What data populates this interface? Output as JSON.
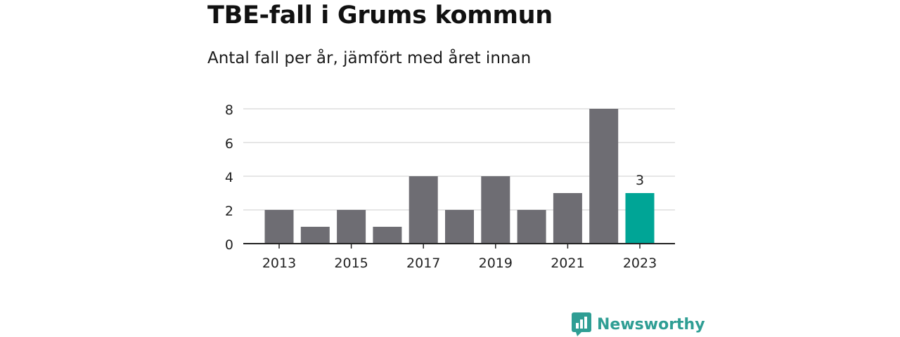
{
  "header": {
    "title": "TBE-fall i Grums kommun",
    "subtitle": "Antal fall per år, jämfört med året innan"
  },
  "brand": {
    "name": "Newsworthy"
  },
  "colors": {
    "bar": "#6e6d73",
    "highlight": "#00a596",
    "grid": "#dddddd",
    "axis": "#222222",
    "brand": "#2f9e94"
  },
  "chart_data": {
    "type": "bar",
    "title": "TBE-fall i Grums kommun",
    "subtitle": "Antal fall per år, jämfört med året innan",
    "categories": [
      "2013",
      "2014",
      "2015",
      "2016",
      "2017",
      "2018",
      "2019",
      "2020",
      "2021",
      "2022",
      "2023"
    ],
    "values": [
      2,
      1,
      2,
      1,
      4,
      2,
      4,
      2,
      3,
      8,
      3
    ],
    "highlight_index": 10,
    "data_labels": [
      {
        "index": 10,
        "text": "3"
      }
    ],
    "x_tick_labels": [
      "2013",
      "2015",
      "2017",
      "2019",
      "2021",
      "2023"
    ],
    "y_ticks": [
      0,
      2,
      4,
      6,
      8
    ],
    "ylim": [
      0,
      8
    ],
    "grid": true,
    "xlabel": "",
    "ylabel": ""
  }
}
